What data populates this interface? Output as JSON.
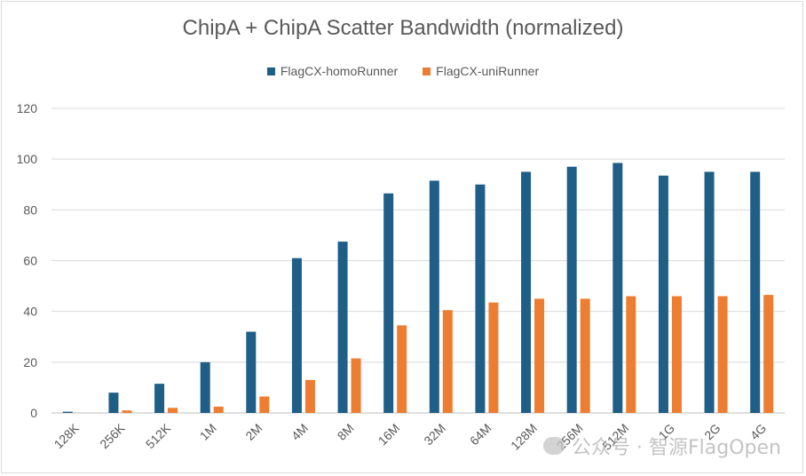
{
  "chart_data": {
    "type": "bar",
    "title": "ChipA + ChipA Scatter Bandwidth (normalized)",
    "xlabel": "",
    "ylabel": "",
    "ylim": [
      0,
      120
    ],
    "yticks": [
      0,
      20,
      40,
      60,
      80,
      100,
      120
    ],
    "ytick_labels": [
      "0",
      "20",
      "40",
      "60",
      "80",
      "100",
      "120"
    ],
    "grid": true,
    "legend_position": "top",
    "categories": [
      "128K",
      "256K",
      "512K",
      "1M",
      "2M",
      "4M",
      "8M",
      "16M",
      "32M",
      "64M",
      "128M",
      "256M",
      "512M",
      "1G",
      "2G",
      "4G"
    ],
    "series": [
      {
        "name": "FlagCX-homoRunner",
        "color": "#1f5f87",
        "values": [
          0.5,
          8,
          11.5,
          20,
          32,
          61,
          67.5,
          86.5,
          91.5,
          90,
          95,
          97,
          98.5,
          93.5,
          95,
          95
        ]
      },
      {
        "name": "FlagCX-uniRunner",
        "color": "#ed7d31",
        "values": [
          0,
          1,
          2,
          2.5,
          6.5,
          13,
          21.5,
          34.5,
          40.5,
          43.5,
          45,
          45,
          46,
          46,
          46,
          46.5
        ]
      }
    ]
  },
  "watermark": "公众号 · 智源FlagOpen"
}
